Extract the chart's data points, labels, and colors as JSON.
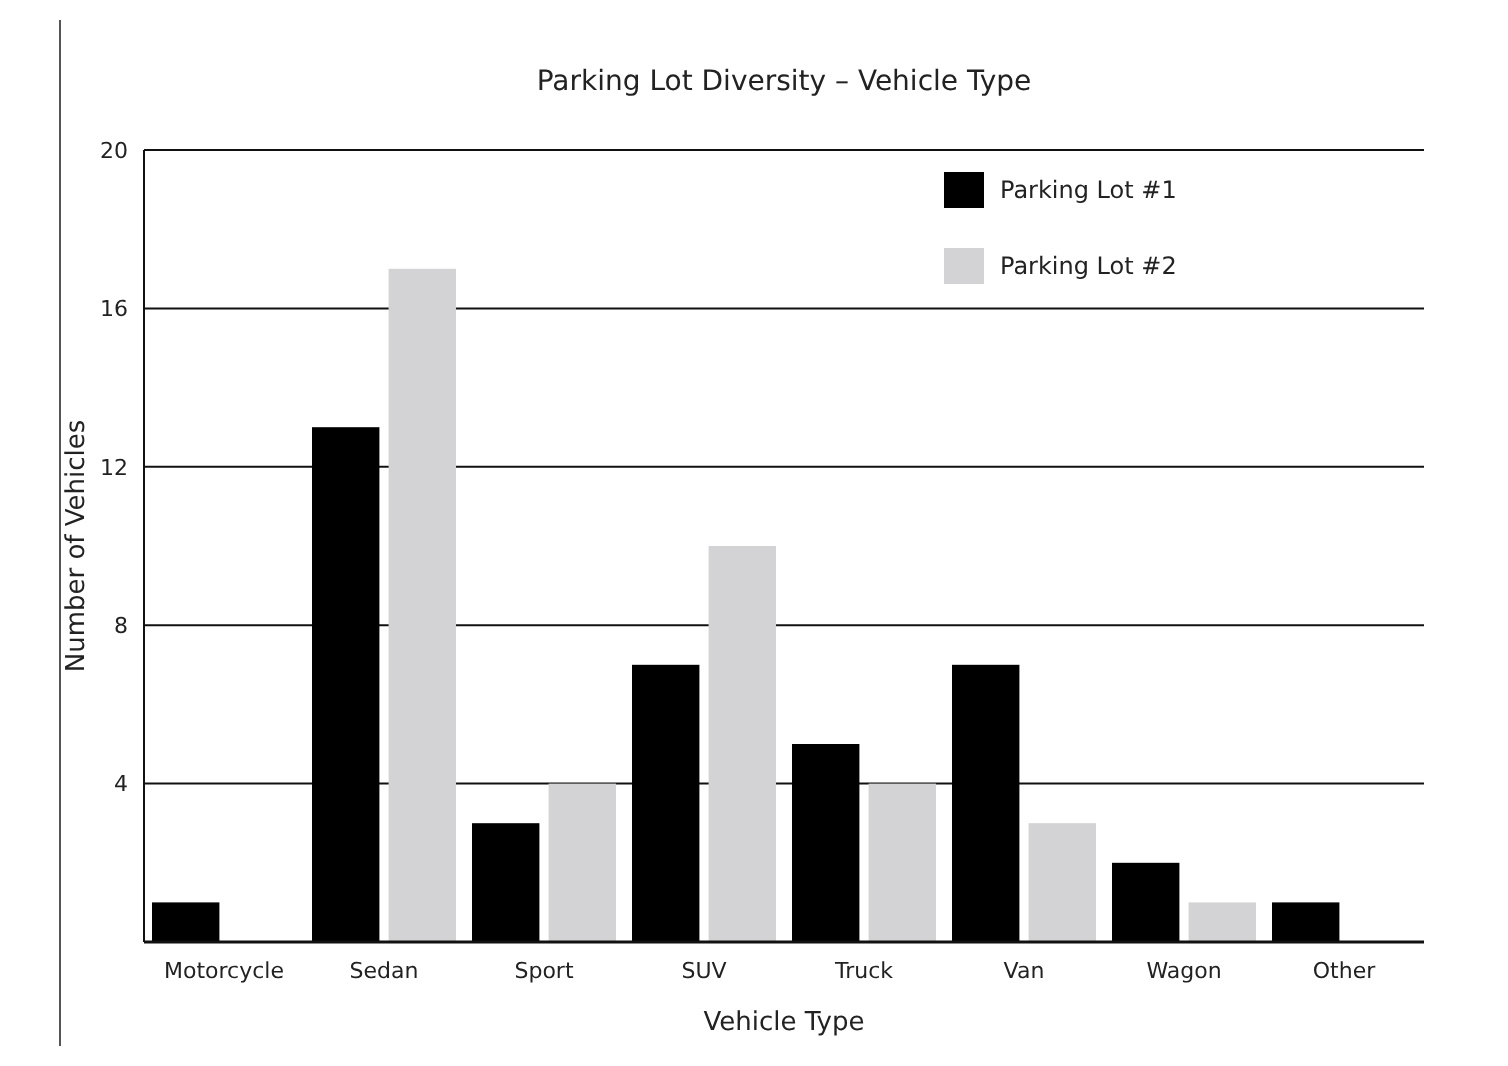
{
  "chart_data": {
    "type": "bar",
    "title": "Parking Lot Diversity – Vehicle Type",
    "xlabel": "Vehicle Type",
    "ylabel": "Number of Vehicles",
    "categories": [
      "Motorcycle",
      "Sedan",
      "Sport",
      "SUV",
      "Truck",
      "Van",
      "Wagon",
      "Other"
    ],
    "series": [
      {
        "name": "Parking Lot #1",
        "color": "#000000",
        "values": [
          1,
          13,
          3,
          7,
          5,
          7,
          2,
          1
        ]
      },
      {
        "name": "Parking Lot #2",
        "color": "#d3d3d5",
        "values": [
          null,
          17,
          4,
          10,
          4,
          3,
          1,
          null
        ]
      }
    ],
    "ylim": [
      0,
      20
    ],
    "yticks": [
      4,
      8,
      12,
      16,
      20
    ],
    "grid": "y",
    "legend": "top right"
  }
}
